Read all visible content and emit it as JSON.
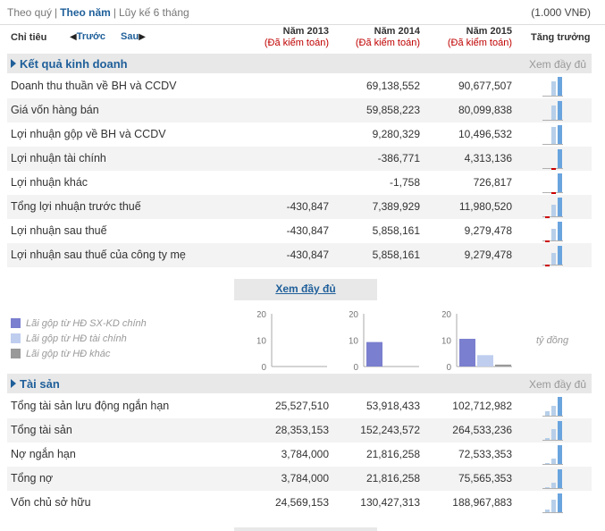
{
  "topbar": {
    "period_quarter": "Theo quý",
    "period_year": "Theo năm",
    "period_ytd": "Lũy kế 6 tháng",
    "separator": "|",
    "unit": "(1.000 VNĐ)"
  },
  "header": {
    "indicator": "Chỉ tiêu",
    "prev": "Trước",
    "next": "Sau",
    "years": [
      {
        "year": "Năm 2013",
        "audit": "(Đã kiểm toán)"
      },
      {
        "year": "Năm 2014",
        "audit": "(Đã kiểm toán)"
      },
      {
        "year": "Năm 2015",
        "audit": "(Đã kiểm toán)"
      }
    ],
    "growth": "Tăng trưởng"
  },
  "business": {
    "title": "Kết quả kinh doanh",
    "more": "Xem đầy đủ",
    "rows": [
      {
        "label": "Doanh thu thuần về BH và CCDV",
        "v2013": "",
        "v2014": "69,138,552",
        "v2015": "90,677,507"
      },
      {
        "label": "Giá vốn hàng bán",
        "v2013": "",
        "v2014": "59,858,223",
        "v2015": "80,099,838"
      },
      {
        "label": "Lợi nhuận gộp về BH và CCDV",
        "v2013": "",
        "v2014": "9,280,329",
        "v2015": "10,496,532"
      },
      {
        "label": "Lợi nhuận tài chính",
        "v2013": "",
        "v2014": "-386,771",
        "v2015": "4,313,136"
      },
      {
        "label": "Lợi nhuận khác",
        "v2013": "",
        "v2014": "-1,758",
        "v2015": "726,817"
      },
      {
        "label": "Tổng lợi nhuận trước thuế",
        "v2013": "-430,847",
        "v2014": "7,389,929",
        "v2015": "11,980,520"
      },
      {
        "label": "Lợi nhuận sau thuế",
        "v2013": "-430,847",
        "v2014": "5,858,161",
        "v2015": "9,279,478"
      },
      {
        "label": "Lợi nhuận sau thuế của công ty mẹ",
        "v2013": "-430,847",
        "v2014": "5,858,161",
        "v2015": "9,279,478"
      }
    ],
    "more_center": "Xem đầy đủ"
  },
  "legend": [
    {
      "label": "Lãi gộp từ HĐ SX-KD chính",
      "color": "#7b7fcf"
    },
    {
      "label": "Lãi gộp từ HĐ tài chính",
      "color": "#bfcdef"
    },
    {
      "label": "Lãi gộp từ HĐ khác",
      "color": "#999999"
    }
  ],
  "chart_data": {
    "type": "bar",
    "categories": [
      "Năm 2013",
      "Năm 2014",
      "Năm 2015"
    ],
    "series": [
      {
        "name": "Lãi gộp từ HĐ SX-KD chính",
        "values": [
          0,
          9.28,
          10.5
        ]
      },
      {
        "name": "Lãi gộp từ HĐ tài chính",
        "values": [
          0,
          -0.39,
          4.31
        ]
      },
      {
        "name": "Lãi gộp từ HĐ khác",
        "values": [
          0,
          0,
          0.73
        ]
      }
    ],
    "ylim": [
      0,
      20
    ],
    "yticks": [
      "20",
      "10",
      "0"
    ],
    "unit": "tỷ đồng"
  },
  "assets": {
    "title": "Tài sản",
    "more": "Xem đầy đủ",
    "rows": [
      {
        "label": "Tổng tài sản lưu động ngắn hạn",
        "v2013": "25,527,510",
        "v2014": "53,918,433",
        "v2015": "102,712,982"
      },
      {
        "label": "Tổng tài sản",
        "v2013": "28,353,153",
        "v2014": "152,243,572",
        "v2015": "264,533,236"
      },
      {
        "label": "Nợ ngắn hạn",
        "v2013": "3,784,000",
        "v2014": "21,816,258",
        "v2015": "72,533,353"
      },
      {
        "label": "Tổng nợ",
        "v2013": "3,784,000",
        "v2014": "21,816,258",
        "v2015": "75,565,353"
      },
      {
        "label": "Vốn chủ sở hữu",
        "v2013": "24,569,153",
        "v2014": "130,427,313",
        "v2015": "188,967,883"
      }
    ]
  }
}
